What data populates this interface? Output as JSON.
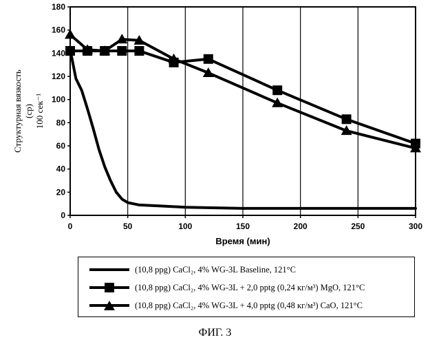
{
  "chart_data": {
    "type": "line",
    "xlabel": "Время (мин)",
    "ylabel": [
      "Структурная вязкость",
      "(ср)",
      "100 сек⁻¹"
    ],
    "xlim": [
      0,
      300
    ],
    "ylim": [
      0,
      180
    ],
    "xticks": [
      0,
      50,
      100,
      150,
      200,
      250,
      300
    ],
    "yticks": [
      0,
      20,
      40,
      60,
      80,
      100,
      120,
      140,
      160,
      180
    ],
    "grid": "vertical",
    "series": [
      {
        "name": "(10,8 ppg) CaCl₂, 4% WG-3L Baseline, 121°C",
        "marker": "none",
        "x": [
          0,
          5,
          10,
          15,
          20,
          25,
          30,
          35,
          40,
          45,
          50,
          60,
          80,
          100,
          150,
          200,
          250,
          300
        ],
        "values": [
          143,
          118,
          108,
          92,
          75,
          57,
          42,
          30,
          20,
          14,
          11,
          9,
          8,
          7,
          6,
          6,
          6,
          6
        ]
      },
      {
        "name": "(10,8 ppg) CaCl₂, 4% WG-3L + 2,0 pptg (0,24 кг/м³) MgO, 121°C",
        "marker": "square",
        "x": [
          0,
          15,
          30,
          45,
          60,
          90,
          120,
          180,
          240,
          300
        ],
        "values": [
          142,
          142,
          142,
          142,
          142,
          132,
          135,
          108,
          83,
          62
        ]
      },
      {
        "name": "(10,8 ppg) CaCl₂, 4% WG-3L + 4,0 pptg (0,48 кг/м³) CaO, 121°C",
        "marker": "triangle",
        "x": [
          0,
          15,
          30,
          45,
          60,
          90,
          120,
          180,
          240,
          300
        ],
        "values": [
          156,
          143,
          142,
          152,
          151,
          135,
          123,
          97,
          73,
          58
        ]
      }
    ],
    "caption": "ФИГ. 3"
  }
}
